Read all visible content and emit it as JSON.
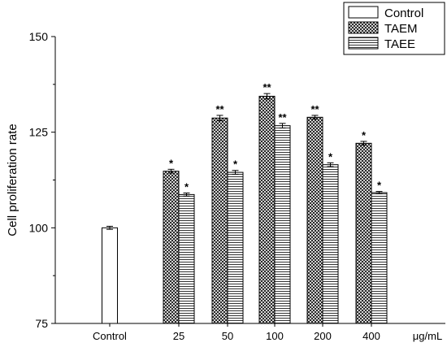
{
  "chart_data": {
    "type": "bar",
    "ylabel": "Cell proliferation rate",
    "xunit": "μg/mL",
    "ylim": [
      75,
      150
    ],
    "yticks": [
      75,
      100,
      125,
      150
    ],
    "grid": false,
    "legend_position": "top-right",
    "series": [
      {
        "name": "Control",
        "pattern": "blank",
        "points": [
          {
            "category": "Control",
            "value": 100.0,
            "error": 0.4,
            "sig": ""
          }
        ]
      },
      {
        "name": "TAEM",
        "pattern": "crosshatch",
        "points": [
          {
            "category": "25",
            "value": 114.8,
            "error": 0.5,
            "sig": "*"
          },
          {
            "category": "50",
            "value": 128.7,
            "error": 0.7,
            "sig": "**"
          },
          {
            "category": "100",
            "value": 134.4,
            "error": 0.7,
            "sig": "**"
          },
          {
            "category": "200",
            "value": 128.9,
            "error": 0.5,
            "sig": "**"
          },
          {
            "category": "400",
            "value": 122.1,
            "error": 0.5,
            "sig": "*"
          }
        ]
      },
      {
        "name": "TAEE",
        "pattern": "horizontal-lines",
        "points": [
          {
            "category": "25",
            "value": 108.7,
            "error": 0.4,
            "sig": "*"
          },
          {
            "category": "50",
            "value": 114.5,
            "error": 0.5,
            "sig": "*"
          },
          {
            "category": "100",
            "value": 126.7,
            "error": 0.6,
            "sig": "**"
          },
          {
            "category": "200",
            "value": 116.5,
            "error": 0.5,
            "sig": "*"
          },
          {
            "category": "400",
            "value": 109.2,
            "error": 0.3,
            "sig": "*"
          }
        ]
      }
    ],
    "categories": [
      "Control",
      "25",
      "50",
      "100",
      "200",
      "400"
    ]
  }
}
